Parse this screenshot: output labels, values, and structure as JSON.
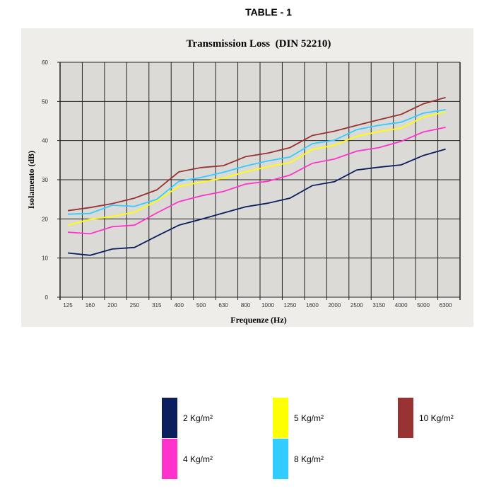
{
  "page_title": "TABLE - 1",
  "chart_data": {
    "type": "line",
    "title": "Transmission Loss  (DIN 52210)",
    "xlabel": "Frequenze (Hz)",
    "ylabel": "Isolamento (dB)",
    "ylim": [
      0,
      60
    ],
    "yticks": [
      0,
      10,
      20,
      30,
      40,
      50,
      60
    ],
    "grid": true,
    "legend_position": "bottom",
    "categories": [
      "125",
      "160",
      "200",
      "250",
      "315",
      "400",
      "500",
      "630",
      "800",
      "1000",
      "1250",
      "1600",
      "2000",
      "2500",
      "3150",
      "4000",
      "5000",
      "6300"
    ],
    "series": [
      {
        "name": "2 Kg/m²",
        "color": "#0b1f5e",
        "values": [
          11.3,
          10.7,
          12.3,
          12.7,
          15.6,
          18.4,
          19.9,
          21.5,
          23.1,
          24.0,
          25.3,
          28.5,
          29.5,
          32.5,
          33.2,
          33.8,
          36.2,
          37.8
        ]
      },
      {
        "name": "4 Kg/m²",
        "color": "#ff33cc",
        "values": [
          16.6,
          16.2,
          18.0,
          18.4,
          21.5,
          24.4,
          25.9,
          27.0,
          28.9,
          29.6,
          31.2,
          34.2,
          35.3,
          37.3,
          38.2,
          39.8,
          42.2,
          43.4
        ]
      },
      {
        "name": "5 Kg/m²",
        "color": "#ffff00",
        "values": [
          18.4,
          19.9,
          20.6,
          21.7,
          24.6,
          28.3,
          29.4,
          30.4,
          32.0,
          33.3,
          34.4,
          37.7,
          38.8,
          41.1,
          42.3,
          43.2,
          46.0,
          47.3
        ]
      },
      {
        "name": "8 Kg/m²",
        "color": "#33ccff",
        "values": [
          21.2,
          21.4,
          23.5,
          23.2,
          25.0,
          29.6,
          30.6,
          31.9,
          33.5,
          34.8,
          35.8,
          39.2,
          40.1,
          42.8,
          43.9,
          44.7,
          47.0,
          47.9
        ]
      },
      {
        "name": "10 Kg/m²",
        "color": "#993333",
        "values": [
          22.1,
          22.9,
          23.9,
          25.3,
          27.4,
          32.0,
          33.1,
          33.6,
          35.9,
          36.8,
          38.2,
          41.3,
          42.4,
          43.9,
          45.3,
          46.7,
          49.4,
          51.0
        ]
      }
    ]
  }
}
